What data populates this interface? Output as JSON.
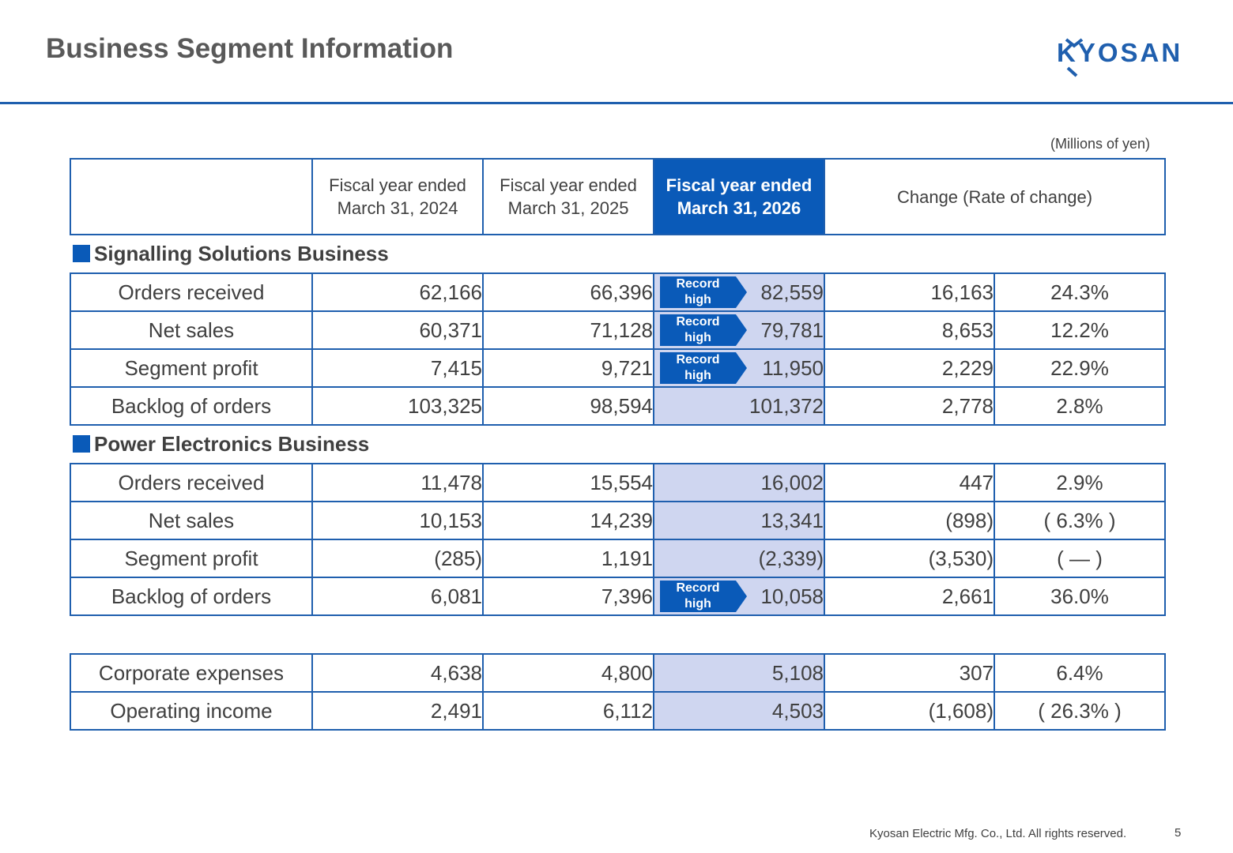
{
  "title": "Business Segment Information",
  "logo_text": "KYOSAN",
  "units": "(Millions of yen)",
  "columns": [
    "Fiscal year ended\nMarch 31, 2024",
    "Fiscal year ended\nMarch 31, 2025",
    "Fiscal year ended\nMarch 31, 2026",
    "Change (Rate of change)"
  ],
  "badge_label": "Record\nhigh",
  "sections": [
    {
      "title": "Signalling Solutions Business",
      "rows": [
        {
          "label": "Orders received",
          "fy2024": "62,166",
          "fy2025": "66,396",
          "fy2026": "82,559",
          "change": "16,163",
          "rate": "24.3%",
          "record_high": true
        },
        {
          "label": "Net sales",
          "fy2024": "60,371",
          "fy2025": "71,128",
          "fy2026": "79,781",
          "change": "8,653",
          "rate": "12.2%",
          "record_high": true
        },
        {
          "label": "Segment profit",
          "fy2024": "7,415",
          "fy2025": "9,721",
          "fy2026": "11,950",
          "change": "2,229",
          "rate": "22.9%",
          "record_high": true
        },
        {
          "label": "Backlog of orders",
          "fy2024": "103,325",
          "fy2025": "98,594",
          "fy2026": "101,372",
          "change": "2,778",
          "rate": "2.8%",
          "record_high": false
        }
      ]
    },
    {
      "title": "Power Electronics Business",
      "rows": [
        {
          "label": "Orders received",
          "fy2024": "11,478",
          "fy2025": "15,554",
          "fy2026": "16,002",
          "change": "447",
          "rate": "2.9%",
          "record_high": false
        },
        {
          "label": "Net sales",
          "fy2024": "10,153",
          "fy2025": "14,239",
          "fy2026": "13,341",
          "change": "(898)",
          "rate": "( 6.3% )",
          "record_high": false
        },
        {
          "label": "Segment profit",
          "fy2024": "(285)",
          "fy2025": "1,191",
          "fy2026": "(2,339)",
          "change": "(3,530)",
          "rate": "( — )",
          "record_high": false
        },
        {
          "label": "Backlog of orders",
          "fy2024": "6,081",
          "fy2025": "7,396",
          "fy2026": "10,058",
          "change": "2,661",
          "rate": "36.0%",
          "record_high": true
        }
      ]
    }
  ],
  "corporate": {
    "rows": [
      {
        "label": "Corporate expenses",
        "fy2024": "4,638",
        "fy2025": "4,800",
        "fy2026": "5,108",
        "change": "307",
        "rate": "6.4%",
        "record_high": false
      },
      {
        "label": "Operating income",
        "fy2024": "2,491",
        "fy2025": "6,112",
        "fy2026": "4,503",
        "change": "(1,608)",
        "rate": "( 26.3% )",
        "record_high": false
      }
    ]
  },
  "footer": {
    "copyright": "Kyosan Electric Mfg. Co., Ltd. All rights reserved.",
    "page_number": "5"
  },
  "colors": {
    "brand_blue": "#1f5fae",
    "current_column": "#0a5ab8",
    "highlight_cell": "#cfd6f0"
  }
}
